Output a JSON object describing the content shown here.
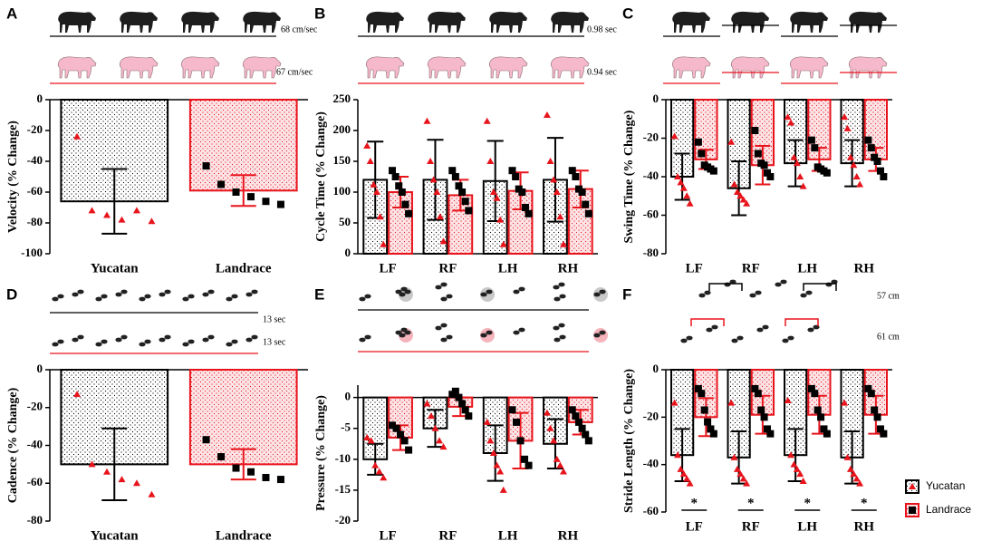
{
  "chart_data": [
    {
      "label": "A",
      "type": "bar",
      "ylabel": "Velocity (% Change)",
      "categories": [
        "Yucatan",
        "Landrace"
      ],
      "ylim": [
        -100,
        0
      ],
      "yticks": [
        0,
        -20,
        -40,
        -60,
        -80,
        -100
      ],
      "annotations": [
        "68 cm/sec",
        "67 cm/sec"
      ],
      "series": [
        {
          "name": "Yucatan",
          "color": "#000000",
          "fill": "#ffffff",
          "marker": "triangle",
          "marker_color": "#e8141c",
          "values": [
            -66,
            null
          ],
          "errors": [
            21,
            null
          ],
          "points": [
            [
              -24,
              -72,
              -75,
              -78,
              -72,
              -79
            ],
            null
          ]
        },
        {
          "name": "Landrace",
          "color": "#e8141c",
          "fill": "#fde4e6",
          "marker": "square",
          "marker_color": "#000000",
          "values": [
            null,
            -59
          ],
          "errors": [
            null,
            10
          ],
          "points": [
            null,
            [
              -43,
              -55,
              -60,
              -63,
              -66,
              -68
            ]
          ]
        }
      ]
    },
    {
      "label": "B",
      "type": "bar",
      "ylabel": "Cycle Time (% Change)",
      "categories": [
        "LF",
        "RF",
        "LH",
        "RH"
      ],
      "ylim": [
        0,
        250
      ],
      "yticks": [
        0,
        50,
        100,
        150,
        200,
        250
      ],
      "annotations": [
        "0.98 sec",
        "0.94 sec"
      ],
      "series": [
        {
          "name": "Yucatan",
          "color": "#000000",
          "fill": "#ffffff",
          "marker": "triangle",
          "marker_color": "#e8141c",
          "values": [
            120,
            120,
            118,
            120
          ],
          "errors": [
            62,
            65,
            65,
            68
          ],
          "points": [
            [
              175,
              150,
              112,
              100,
              60,
              15
            ],
            [
              215,
              150,
              120,
              100,
              60,
              20
            ],
            [
              215,
              150,
              100,
              90,
              55,
              15
            ],
            [
              225,
              150,
              120,
              100,
              60,
              15
            ]
          ]
        },
        {
          "name": "Landrace",
          "color": "#e8141c",
          "fill": "#fde4e6",
          "marker": "square",
          "marker_color": "#000000",
          "values": [
            100,
            95,
            102,
            105
          ],
          "errors": [
            25,
            25,
            30,
            30
          ],
          "points": [
            [
              135,
              125,
              110,
              100,
              80,
              65
            ],
            [
              135,
              125,
              110,
              100,
              85,
              70
            ],
            [
              135,
              125,
              105,
              100,
              75,
              65
            ],
            [
              135,
              125,
              105,
              100,
              80,
              65
            ]
          ]
        }
      ]
    },
    {
      "label": "C",
      "type": "bar",
      "ylabel": "Swing Time (% Change)",
      "categories": [
        "LF",
        "RF",
        "LH",
        "RH"
      ],
      "ylim": [
        -80,
        0
      ],
      "yticks": [
        0,
        -20,
        -40,
        -60,
        -80
      ],
      "series": [
        {
          "name": "Yucatan",
          "color": "#000000",
          "fill": "#ffffff",
          "marker": "triangle",
          "marker_color": "#e8141c",
          "values": [
            -40,
            -46,
            -33,
            -33
          ],
          "errors": [
            12,
            14,
            12,
            12
          ],
          "points": [
            [
              -19,
              -40,
              -43,
              -46,
              -50,
              -54
            ],
            [
              -22,
              -44,
              -48,
              -50,
              -52,
              -54
            ],
            [
              -9,
              -12,
              -30,
              -33,
              -40,
              -45
            ],
            [
              -9,
              -15,
              -30,
              -34,
              -40,
              -44
            ]
          ]
        },
        {
          "name": "Landrace",
          "color": "#e8141c",
          "fill": "#fde4e6",
          "marker": "square",
          "marker_color": "#000000",
          "values": [
            -31,
            -34,
            -31,
            -31
          ],
          "errors": [
            5,
            10,
            6,
            6
          ],
          "points": [
            [
              -22,
              -28,
              -34,
              -35,
              -36,
              -37
            ],
            [
              -16,
              -28,
              -33,
              -34,
              -38,
              -40
            ],
            [
              -21,
              -25,
              -35,
              -36,
              -37,
              -38
            ],
            [
              -21,
              -25,
              -30,
              -32,
              -37,
              -40
            ]
          ]
        }
      ]
    },
    {
      "label": "D",
      "type": "bar",
      "ylabel": "Cadence (% Change)",
      "categories": [
        "Yucatan",
        "Landrace"
      ],
      "ylim": [
        -80,
        0
      ],
      "yticks": [
        0,
        -20,
        -40,
        -60,
        -80
      ],
      "annotations": [
        "13 sec",
        "13 sec"
      ],
      "series": [
        {
          "name": "Yucatan",
          "color": "#000000",
          "fill": "#ffffff",
          "marker": "triangle",
          "marker_color": "#e8141c",
          "values": [
            -50,
            null
          ],
          "errors": [
            19,
            null
          ],
          "points": [
            [
              -13,
              -50,
              -54,
              -58,
              -60,
              -66
            ],
            null
          ]
        },
        {
          "name": "Landrace",
          "color": "#e8141c",
          "fill": "#fde4e6",
          "marker": "square",
          "marker_color": "#000000",
          "values": [
            null,
            -50
          ],
          "errors": [
            null,
            8
          ],
          "points": [
            null,
            [
              -37,
              -46,
              -52,
              -54,
              -57,
              -58
            ]
          ]
        }
      ]
    },
    {
      "label": "E",
      "type": "bar",
      "ylabel": "Pressure (% Change)",
      "categories": [
        "LF",
        "RF",
        "LH",
        "RH"
      ],
      "ylim": [
        -20,
        2
      ],
      "yticks": [
        0,
        -5,
        -10,
        -15,
        -20
      ],
      "series": [
        {
          "name": "Yucatan",
          "color": "#000000",
          "fill": "#ffffff",
          "marker": "triangle",
          "marker_color": "#e8141c",
          "values": [
            -10,
            -5,
            -9,
            -7.5
          ],
          "errors": [
            2.5,
            3,
            4.5,
            4
          ],
          "points": [
            [
              -6.5,
              -7,
              -11,
              -12,
              -13
            ],
            [
              -1,
              -3,
              -5,
              -7,
              -8
            ],
            [
              -4,
              -7,
              -9,
              -11,
              -12,
              -15
            ],
            [
              -2.5,
              -5,
              -7,
              -10,
              -11,
              -12
            ]
          ]
        },
        {
          "name": "Landrace",
          "color": "#e8141c",
          "fill": "#fde4e6",
          "marker": "square",
          "marker_color": "#000000",
          "values": [
            -6.5,
            -1.5,
            -7,
            -4
          ],
          "errors": [
            2,
            1.5,
            4.5,
            2
          ],
          "points": [
            [
              -4.5,
              -5,
              -6,
              -7,
              -8.5
            ],
            [
              0.5,
              1,
              0,
              -1,
              -2,
              -3
            ],
            [
              -2,
              -4,
              -7,
              -10,
              -11
            ],
            [
              -2,
              -3,
              -4,
              -5,
              -6,
              -7
            ]
          ]
        }
      ]
    },
    {
      "label": "F",
      "type": "bar",
      "ylabel": "Stride Length (% Change)",
      "categories": [
        "LF",
        "RF",
        "LH",
        "RH"
      ],
      "ylim": [
        -60,
        0
      ],
      "yticks": [
        0,
        -20,
        -40,
        -60
      ],
      "annotations": [
        "57 cm",
        "61 cm"
      ],
      "significance": [
        "*",
        "*",
        "*",
        "*"
      ],
      "series": [
        {
          "name": "Yucatan",
          "color": "#000000",
          "fill": "#ffffff",
          "marker": "triangle",
          "marker_color": "#e8141c",
          "values": [
            -36,
            -37,
            -36,
            -37
          ],
          "errors": [
            11,
            11,
            11,
            11
          ],
          "points": [
            [
              -14,
              -36,
              -42,
              -44,
              -46,
              -48
            ],
            [
              -14,
              -37,
              -42,
              -44,
              -46,
              -48
            ],
            [
              -13,
              -36,
              -40,
              -42,
              -44,
              -47
            ],
            [
              -14,
              -37,
              -42,
              -44,
              -46,
              -48
            ]
          ]
        },
        {
          "name": "Landrace",
          "color": "#e8141c",
          "fill": "#fde4e6",
          "marker": "square",
          "marker_color": "#000000",
          "values": [
            -20,
            -19,
            -19,
            -19
          ],
          "errors": [
            8,
            8,
            8,
            8
          ],
          "points": [
            [
              -8,
              -10,
              -17,
              -22,
              -25,
              -27
            ],
            [
              -8,
              -10,
              -17,
              -20,
              -25,
              -27
            ],
            [
              -8,
              -10,
              -17,
              -20,
              -25,
              -27
            ],
            [
              -8,
              -10,
              -17,
              -20,
              -25,
              -27
            ]
          ]
        }
      ]
    }
  ]
}
